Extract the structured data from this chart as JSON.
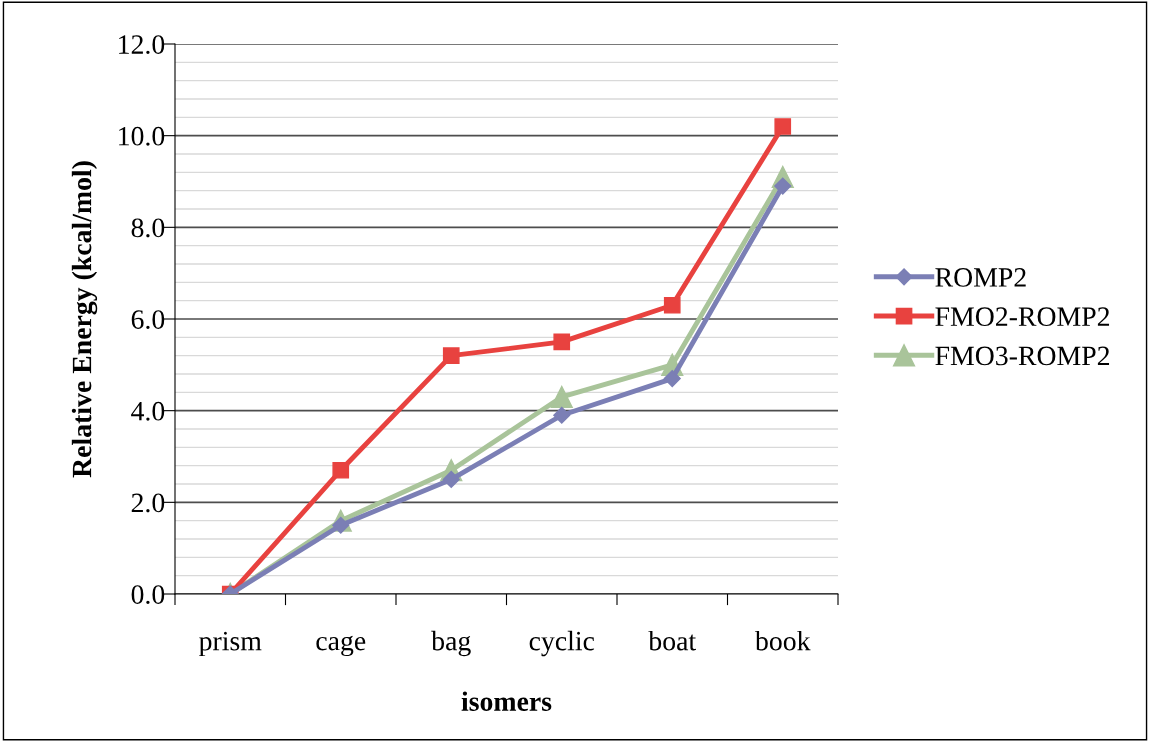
{
  "chart_data": {
    "type": "line",
    "xlabel": "isomers",
    "ylabel": "Relative Energy (kcal/mol)",
    "categories": [
      "prism",
      "cage",
      "bag",
      "cyclic",
      "boat",
      "book"
    ],
    "series": [
      {
        "name": "ROMP2",
        "color": "#7b7fb5",
        "marker": "diamond",
        "values": [
          0,
          1.5,
          2.5,
          3.9,
          4.7,
          8.9
        ]
      },
      {
        "name": "FMO2-ROMP2",
        "color": "#e8423f",
        "marker": "square",
        "values": [
          0,
          2.7,
          5.2,
          5.5,
          6.3,
          10.2
        ]
      },
      {
        "name": "FMO3-ROMP2",
        "color": "#a9c49a",
        "marker": "triangle",
        "values": [
          0,
          1.6,
          2.7,
          4.3,
          5.0,
          9.1
        ]
      }
    ],
    "ylim": [
      0,
      12
    ],
    "yticks": [
      {
        "value": 0,
        "label": "0.0"
      },
      {
        "value": 0.4,
        "label": null
      },
      {
        "value": 0.8,
        "label": null
      },
      {
        "value": 1.2,
        "label": null
      },
      {
        "value": 1.6,
        "label": null
      },
      {
        "value": 2,
        "label": "2.0"
      },
      {
        "value": 2.4,
        "label": null
      },
      {
        "value": 2.8,
        "label": null
      },
      {
        "value": 3.2,
        "label": null
      },
      {
        "value": 3.6,
        "label": null
      },
      {
        "value": 4,
        "label": "4.0"
      },
      {
        "value": 4.4,
        "label": null
      },
      {
        "value": 4.8,
        "label": null
      },
      {
        "value": 5.2,
        "label": null
      },
      {
        "value": 5.6,
        "label": null
      },
      {
        "value": 6,
        "label": "6.0"
      },
      {
        "value": 6.4,
        "label": null
      },
      {
        "value": 6.8,
        "label": null
      },
      {
        "value": 7.2,
        "label": null
      },
      {
        "value": 7.6,
        "label": null
      },
      {
        "value": 8,
        "label": "8.0"
      },
      {
        "value": 8.4,
        "label": null
      },
      {
        "value": 8.8,
        "label": null
      },
      {
        "value": 9.2,
        "label": null
      },
      {
        "value": 9.6,
        "label": null
      },
      {
        "value": 10,
        "label": "10.0"
      },
      {
        "value": 10.4,
        "label": null
      },
      {
        "value": 10.8,
        "label": null
      },
      {
        "value": 11.2,
        "label": null
      },
      {
        "value": 11.6,
        "label": null
      },
      {
        "value": 12,
        "label": "12.0"
      }
    ],
    "grid": "y",
    "legend": "right",
    "line_style": "solid"
  }
}
